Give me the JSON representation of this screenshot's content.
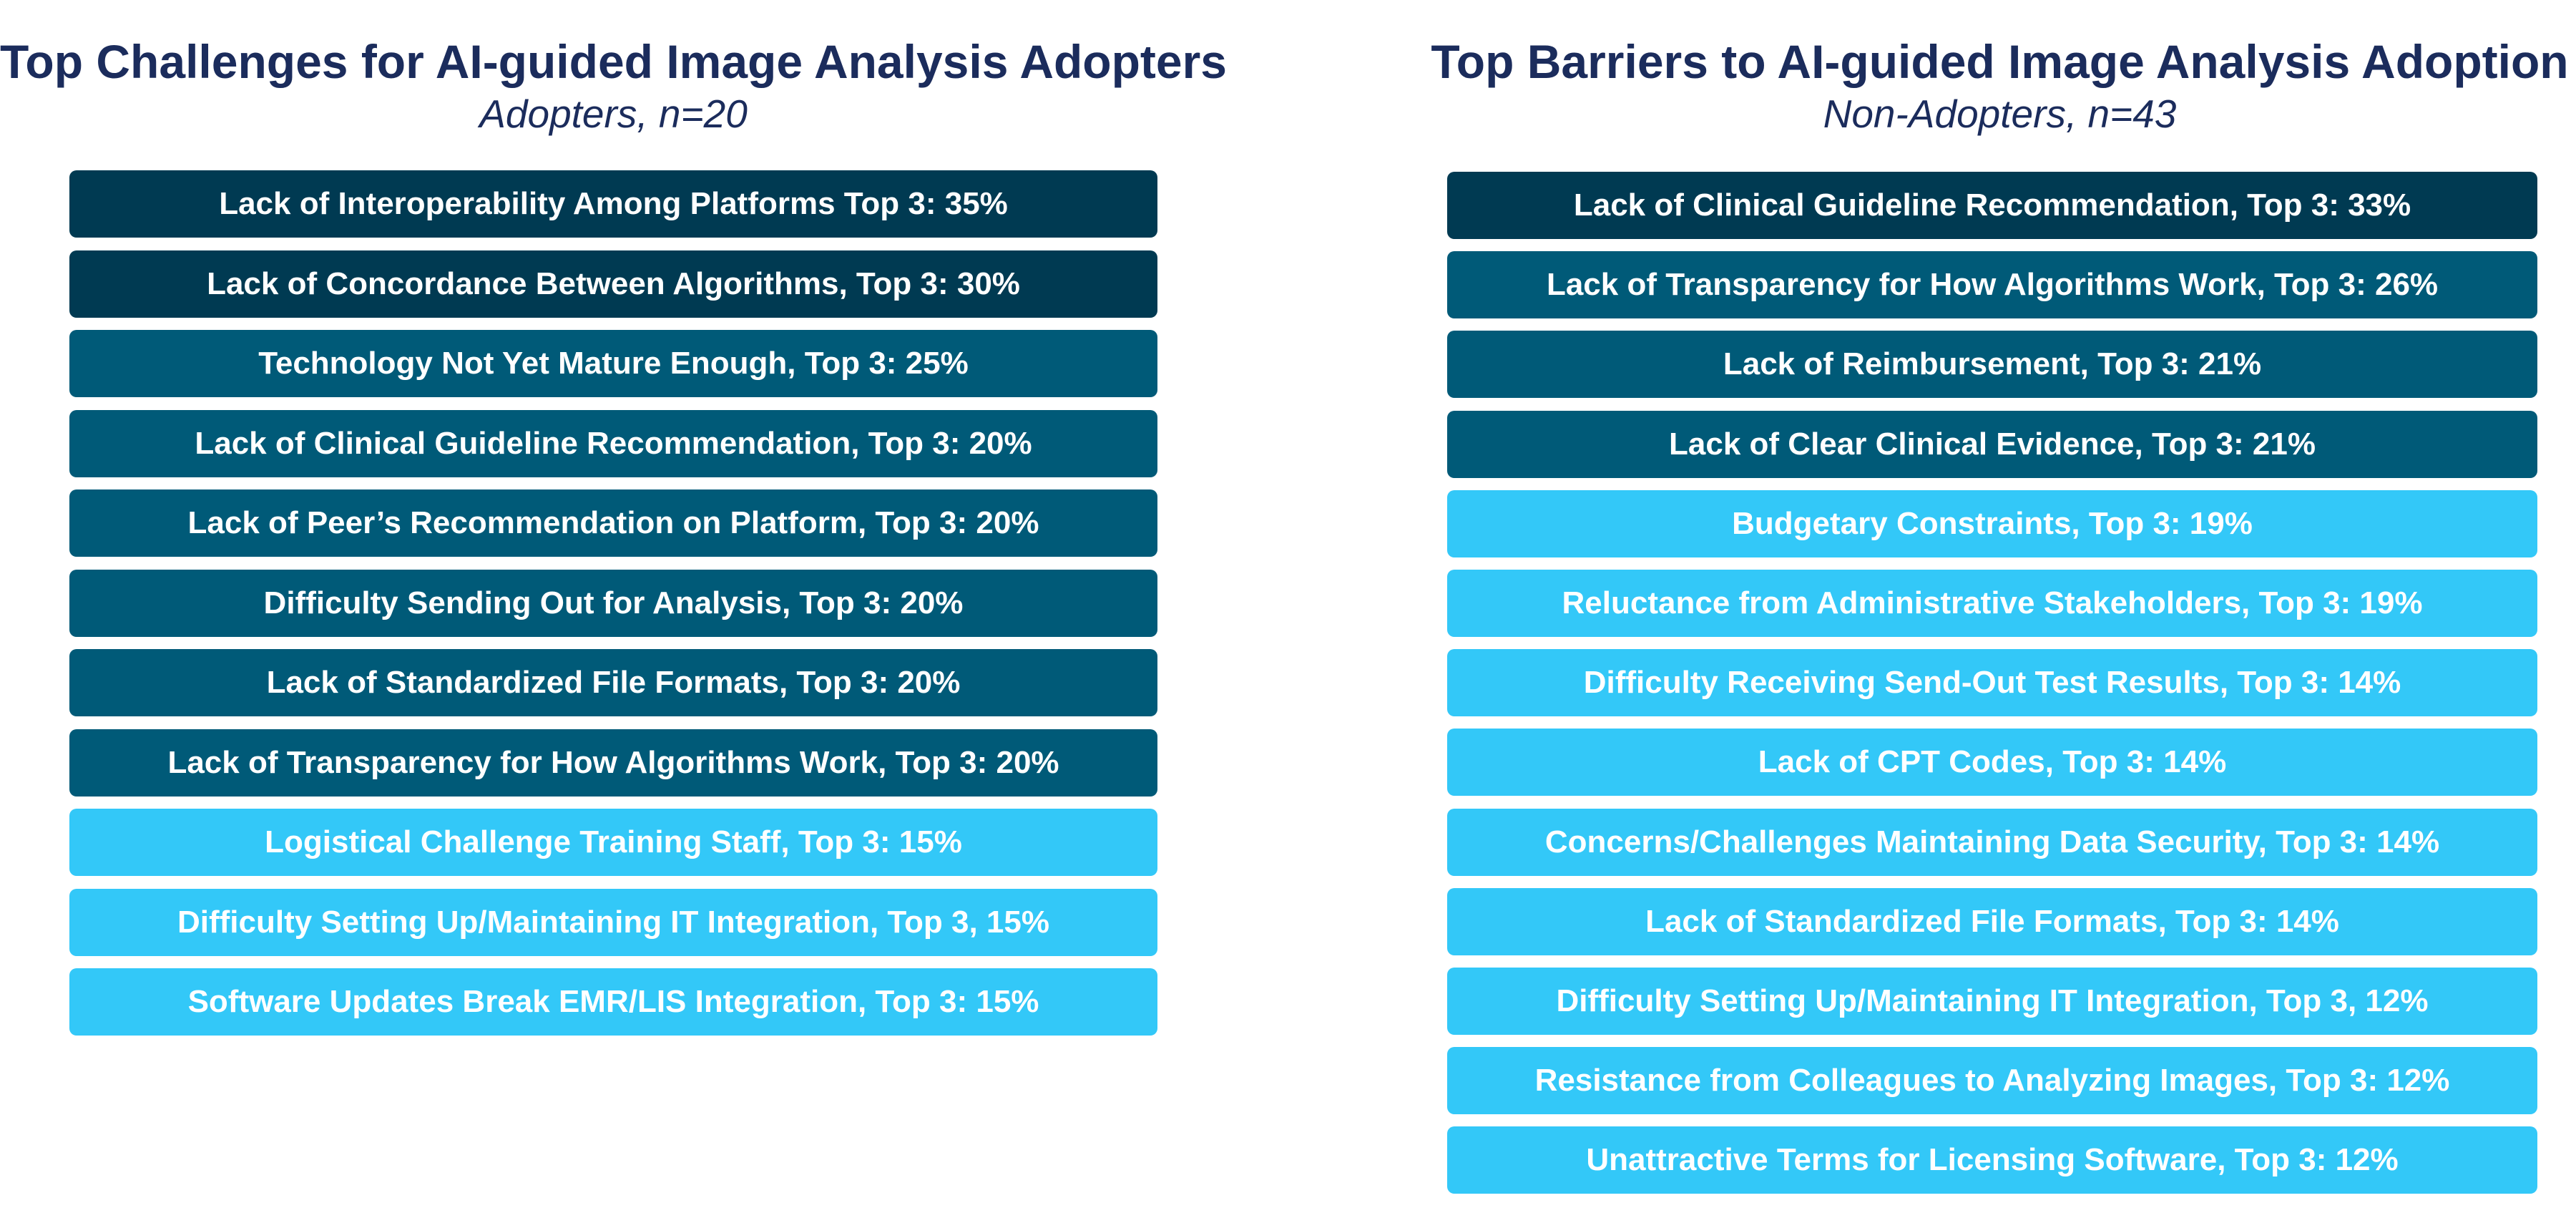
{
  "chart_data": [
    {
      "type": "table",
      "title": "Top Challenges for AI-guided Image Analysis Adopters",
      "subtitle": "Adopters, n=20",
      "colors": {
        "title": "#1b2c5c",
        "dark": "#003a52",
        "medium": "#005a78",
        "light": "#33c8f8"
      },
      "items": [
        {
          "label": "Lack of Interoperability Among Platforms Top 3: 35%",
          "value": 35,
          "tier": "dark"
        },
        {
          "label": "Lack of Concordance Between Algorithms, Top 3: 30%",
          "value": 30,
          "tier": "dark"
        },
        {
          "label": "Technology Not Yet Mature Enough, Top 3: 25%",
          "value": 25,
          "tier": "medium"
        },
        {
          "label": "Lack of Clinical Guideline Recommendation, Top 3: 20%",
          "value": 20,
          "tier": "medium"
        },
        {
          "label": "Lack of Peer’s Recommendation on Platform, Top 3: 20%",
          "value": 20,
          "tier": "medium"
        },
        {
          "label": "Difficulty Sending Out for Analysis, Top 3: 20%",
          "value": 20,
          "tier": "medium"
        },
        {
          "label": "Lack of Standardized File Formats, Top 3: 20%",
          "value": 20,
          "tier": "medium"
        },
        {
          "label": "Lack of Transparency for How Algorithms Work, Top 3: 20%",
          "value": 20,
          "tier": "medium"
        },
        {
          "label": "Logistical Challenge Training Staff, Top 3: 15%",
          "value": 15,
          "tier": "light"
        },
        {
          "label": "Difficulty Setting Up/Maintaining IT Integration, Top 3, 15%",
          "value": 15,
          "tier": "light"
        },
        {
          "label": "Software Updates Break EMR/LIS Integration, Top 3: 15%",
          "value": 15,
          "tier": "light"
        }
      ]
    },
    {
      "type": "table",
      "title": "Top Barriers to AI-guided Image Analysis Adoption",
      "subtitle": "Non-Adopters, n=43",
      "colors": {
        "title": "#1b2c5c",
        "dark": "#003a52",
        "medium": "#005a78",
        "light": "#33c8f8"
      },
      "items": [
        {
          "label": "Lack of Clinical Guideline Recommendation, Top 3: 33%",
          "value": 33,
          "tier": "dark"
        },
        {
          "label": "Lack of Transparency for How Algorithms Work, Top 3: 26%",
          "value": 26,
          "tier": "medium"
        },
        {
          "label": "Lack of Reimbursement, Top 3: 21%",
          "value": 21,
          "tier": "medium"
        },
        {
          "label": "Lack of Clear Clinical Evidence, Top 3: 21%",
          "value": 21,
          "tier": "medium"
        },
        {
          "label": "Budgetary Constraints, Top 3: 19%",
          "value": 19,
          "tier": "light"
        },
        {
          "label": "Reluctance from Administrative Stakeholders, Top 3: 19%",
          "value": 19,
          "tier": "light"
        },
        {
          "label": "Difficulty Receiving Send-Out Test Results, Top 3: 14%",
          "value": 14,
          "tier": "light"
        },
        {
          "label": "Lack of CPT Codes, Top 3: 14%",
          "value": 14,
          "tier": "light"
        },
        {
          "label": "Concerns/Challenges Maintaining Data Security, Top 3: 14%",
          "value": 14,
          "tier": "light"
        },
        {
          "label": "Lack of Standardized File Formats, Top 3: 14%",
          "value": 14,
          "tier": "light"
        },
        {
          "label": "Difficulty Setting Up/Maintaining IT Integration, Top 3, 12%",
          "value": 12,
          "tier": "light"
        },
        {
          "label": "Resistance from Colleagues to Analyzing Images, Top 3: 12%",
          "value": 12,
          "tier": "light"
        },
        {
          "label": "Unattractive Terms for Licensing Software, Top 3: 12%",
          "value": 12,
          "tier": "light"
        }
      ]
    }
  ]
}
